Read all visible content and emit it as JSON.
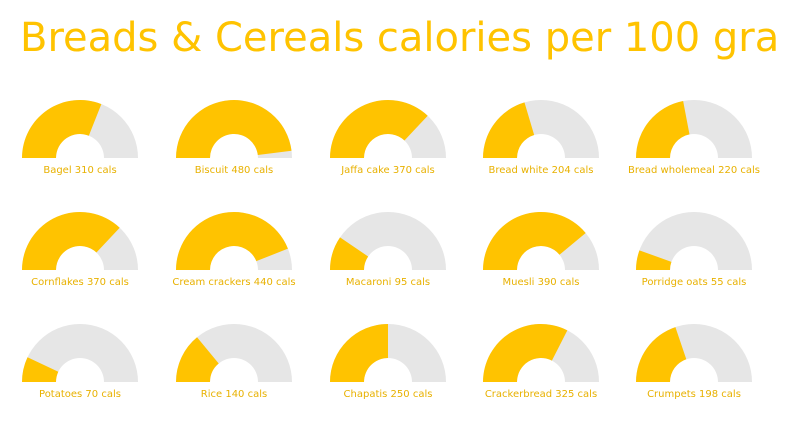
{
  "chart_data": {
    "type": "gauge",
    "title": "Breads & Cereals calories per 100 gra",
    "unit": "cals",
    "max": 500,
    "colors": {
      "fill": "#FFC300",
      "track": "#E6E6E6",
      "label": "#E8B100"
    },
    "items": [
      {
        "name": "Bagel",
        "value": 310,
        "label": "Bagel 310 cals"
      },
      {
        "name": "Biscuit",
        "value": 480,
        "label": "Biscuit 480 cals"
      },
      {
        "name": "Jaffa cake",
        "value": 370,
        "label": "Jaffa cake 370 cals"
      },
      {
        "name": "Bread white",
        "value": 204,
        "label": "Bread white 204 cals"
      },
      {
        "name": "Bread wholemeal",
        "value": 220,
        "label": "Bread wholemeal 220 cals"
      },
      {
        "name": "Cornflakes",
        "value": 370,
        "label": "Cornflakes 370 cals"
      },
      {
        "name": "Cream crackers",
        "value": 440,
        "label": "Cream crackers 440 cals"
      },
      {
        "name": "Macaroni",
        "value": 95,
        "label": "Macaroni 95 cals"
      },
      {
        "name": "Muesli",
        "value": 390,
        "label": "Muesli 390 cals"
      },
      {
        "name": "Porridge oats",
        "value": 55,
        "label": "Porridge oats 55 cals"
      },
      {
        "name": "Potatoes",
        "value": 70,
        "label": "Potatoes 70 cals"
      },
      {
        "name": "Rice",
        "value": 140,
        "label": "Rice 140 cals"
      },
      {
        "name": "Chapatis",
        "value": 250,
        "label": "Chapatis 250 cals"
      },
      {
        "name": "Crackerbread",
        "value": 325,
        "label": "Crackerbread 325 cals"
      },
      {
        "name": "Crumpets",
        "value": 198,
        "label": "Crumpets 198 cals"
      }
    ]
  }
}
